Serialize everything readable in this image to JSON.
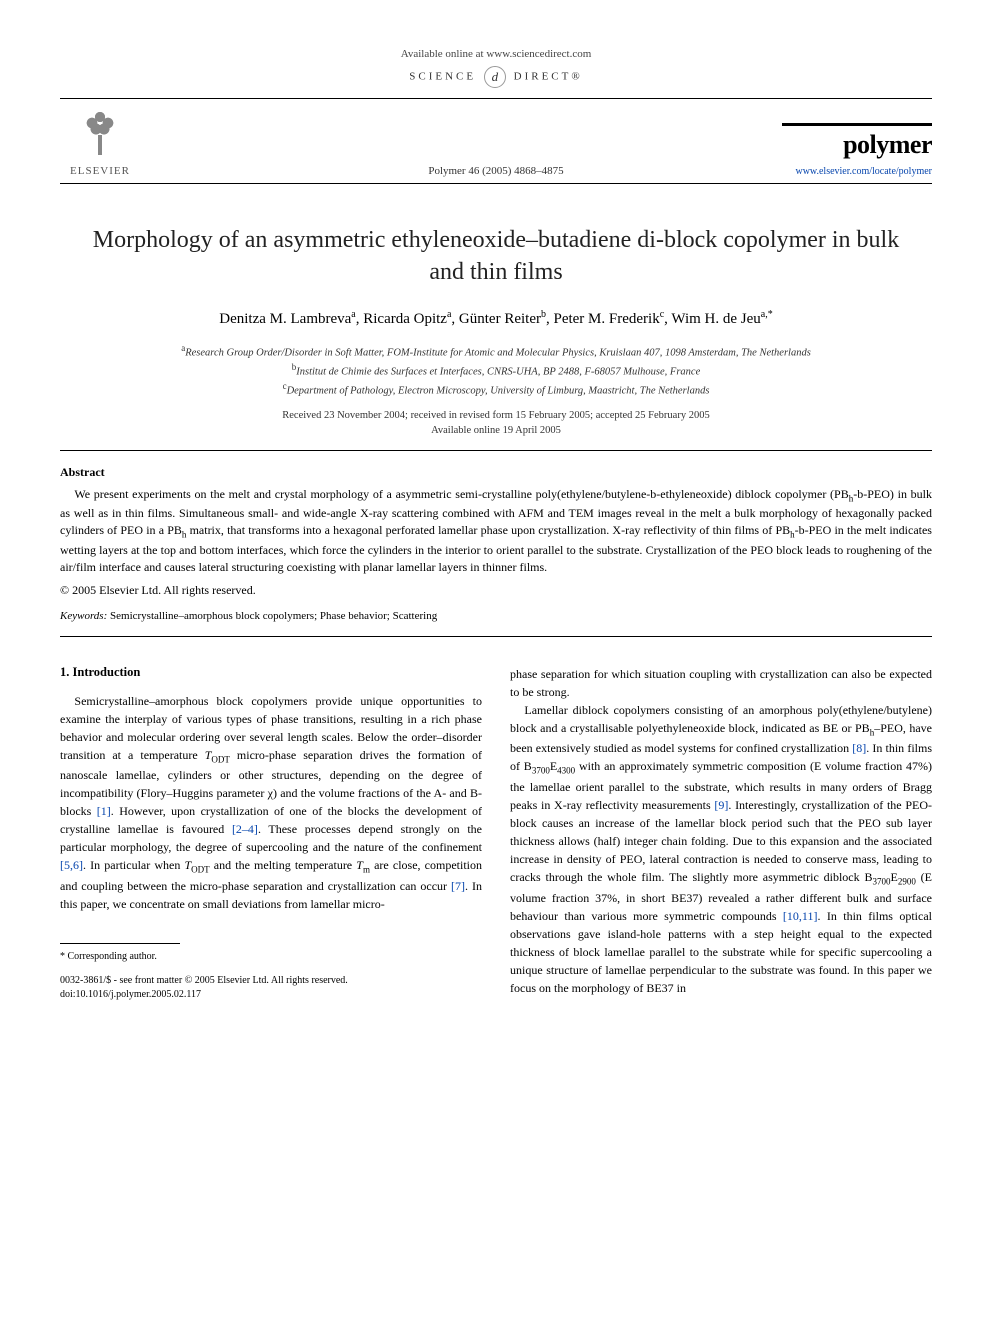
{
  "header": {
    "available": "Available online at www.sciencedirect.com",
    "sciencedirect": "SCIENCE",
    "sciencedirect2": "DIRECT®",
    "journal_ref": "Polymer 46 (2005) 4868–4875",
    "elsevier": "ELSEVIER",
    "polymer": "polymer",
    "polymer_url": "www.elsevier.com/locate/polymer"
  },
  "article": {
    "title": "Morphology of an asymmetric ethyleneoxide–butadiene di-block copolymer in bulk and thin films",
    "authors_html": "Denitza M. Lambreva<sup>a</sup>, Ricarda Opitz<sup>a</sup>, Günter Reiter<sup>b</sup>, Peter M. Frederik<sup>c</sup>, Wim H. de Jeu<sup>a,*</sup>",
    "affiliations": [
      "Research Group Order/Disorder in Soft Matter, FOM-Institute for Atomic and Molecular Physics, Kruislaan 407, 1098 Amsterdam, The Netherlands",
      "Institut de Chimie des Surfaces et Interfaces, CNRS-UHA, BP 2488, F-68057 Mulhouse, France",
      "Department of Pathology, Electron Microscopy, University of Limburg, Maastricht, The Netherlands"
    ],
    "aff_markers": [
      "a",
      "b",
      "c"
    ],
    "received": "Received 23 November 2004; received in revised form 15 February 2005; accepted 25 February 2005",
    "online": "Available online 19 April 2005"
  },
  "abstract": {
    "heading": "Abstract",
    "body": "We present experiments on the melt and crystal morphology of a asymmetric semi-crystalline poly(ethylene/butylene-b-ethyleneoxide) diblock copolymer (PBh-b-PEO) in bulk as well as in thin films. Simultaneous small- and wide-angle X-ray scattering combined with AFM and TEM images reveal in the melt a bulk morphology of hexagonally packed cylinders of PEO in a PBh matrix, that transforms into a hexagonal perforated lamellar phase upon crystallization. X-ray reflectivity of thin films of PBh-b-PEO in the melt indicates wetting layers at the top and bottom interfaces, which force the cylinders in the interior to orient parallel to the substrate. Crystallization of the PEO block leads to roughening of the air/film interface and causes lateral structuring coexisting with planar lamellar layers in thinner films.",
    "copyright": "© 2005 Elsevier Ltd. All rights reserved."
  },
  "keywords": {
    "label": "Keywords:",
    "text": " Semicrystalline–amorphous block copolymers; Phase behavior; Scattering"
  },
  "section1": {
    "heading": "1. Introduction",
    "col1_p1": "Semicrystalline–amorphous block copolymers provide unique opportunities to examine the interplay of various types of phase transitions, resulting in a rich phase behavior and molecular ordering over several length scales. Below the order–disorder transition at a temperature TODT micro-phase separation drives the formation of nanoscale lamellae, cylinders or other structures, depending on the degree of incompatibility (Flory–Huggins parameter χ) and the volume fractions of the A- and B-blocks [1]. However, upon crystallization of one of the blocks the development of crystalline lamellae is favoured [2–4]. These processes depend strongly on the particular morphology, the degree of supercooling and the nature of the confinement [5,6]. In particular when TODT and the melting temperature Tm are close, competition and coupling between the micro-phase separation and crystallization can occur [7]. In this paper, we concentrate on small deviations from lamellar micro-",
    "col2_p0": "phase separation for which situation coupling with crystallization can also be expected to be strong.",
    "col2_p1": "Lamellar diblock copolymers consisting of an amorphous poly(ethylene/butylene) block and a crystallisable polyethyleneoxide block, indicated as BE or PBh–PEO, have been extensively studied as model systems for confined crystallization [8]. In thin films of B3700E4300 with an approximately symmetric composition (E volume fraction 47%) the lamellae orient parallel to the substrate, which results in many orders of Bragg peaks in X-ray reflectivity measurements [9]. Interestingly, crystallization of the PEO-block causes an increase of the lamellar block period such that the PEO sub layer thickness allows (half) integer chain folding. Due to this expansion and the associated increase in density of PEO, lateral contraction is needed to conserve mass, leading to cracks through the whole film. The slightly more asymmetric diblock B3700E2900 (E volume fraction 37%, in short BE37) revealed a rather different bulk and surface behaviour than various more symmetric compounds [10,11]. In thin films optical observations gave island-hole patterns with a step height equal to the expected thickness of block lamellae parallel to the substrate while for specific supercooling a unique structure of lamellae perpendicular to the substrate was found. In this paper we focus on the morphology of BE37 in"
  },
  "footnotes": {
    "corresponding": "* Corresponding author.",
    "issn": "0032-3861/$ - see front matter © 2005 Elsevier Ltd. All rights reserved.",
    "doi": "doi:10.1016/j.polymer.2005.02.117"
  },
  "ref_links": [
    "[1]",
    "[2–4]",
    "[5,6]",
    "[7]",
    "[8]",
    "[9]",
    "[10,11]"
  ],
  "colors": {
    "link": "#0645ad",
    "text": "#000000",
    "background": "#ffffff"
  }
}
